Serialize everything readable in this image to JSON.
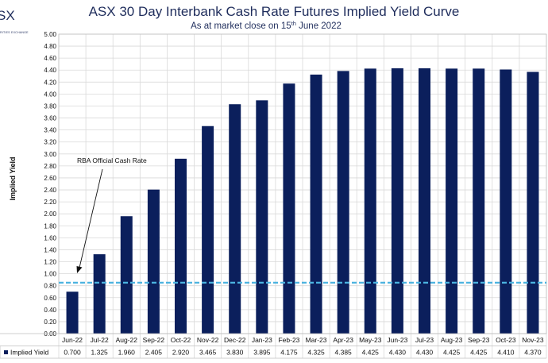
{
  "logo": {
    "text": "SX",
    "subtext": "RITIES EXCHANGE"
  },
  "chart_data": {
    "type": "bar",
    "title": "ASX 30 Day Interbank Cash Rate Futures Implied Yield Curve",
    "subtitle": {
      "prefix": "As at market close on 15",
      "sup": "th",
      "suffix": " June 2022"
    },
    "ylabel": "Implied Yield",
    "ylim": [
      0,
      5
    ],
    "ytick_step": 0.2,
    "grid": true,
    "categories": [
      "Jun-22",
      "Jul-22",
      "Aug-22",
      "Sep-22",
      "Oct-22",
      "Nov-22",
      "Dec-22",
      "Jan-23",
      "Feb-23",
      "Mar-23",
      "Apr-23",
      "May-23",
      "Jun-23",
      "Jul-23",
      "Aug-23",
      "Sep-23",
      "Oct-23",
      "Nov-23"
    ],
    "series": [
      {
        "name": "Implied Yield",
        "values": [
          0.7,
          1.325,
          1.96,
          2.405,
          2.92,
          3.465,
          3.83,
          3.895,
          4.175,
          4.325,
          4.385,
          4.425,
          4.43,
          4.43,
          4.425,
          4.425,
          4.41,
          4.37
        ],
        "labels": [
          "0.700",
          "1.325",
          "1.960",
          "2.405",
          "2.920",
          "3.465",
          "3.830",
          "3.895",
          "4.175",
          "4.325",
          "4.385",
          "4.425",
          "4.430",
          "4.430",
          "4.425",
          "4.425",
          "4.410",
          "4.370"
        ]
      }
    ],
    "reference_line": {
      "name": "RBA Official Cash Rate",
      "value": 0.85,
      "style": "dashed"
    },
    "legend": "data-table-left",
    "colors": {
      "bar": "#0b1f5c",
      "reference": "#4bb3e0",
      "grid": "#d9d9d9",
      "title": "#1f2d5c"
    }
  }
}
